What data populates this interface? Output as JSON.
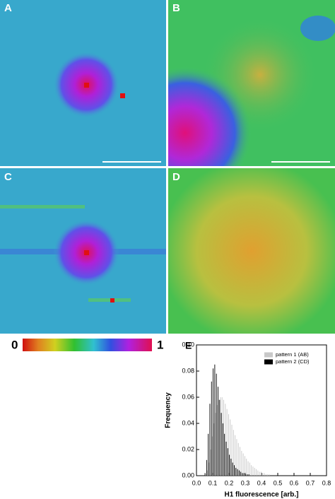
{
  "panels": {
    "labels": [
      "A",
      "B",
      "C",
      "D"
    ]
  },
  "colorbar": {
    "lim": [
      0,
      1
    ]
  },
  "chart_data": {
    "type": "histogram",
    "panel_label": "E",
    "xlabel": "H1 fluorescence [arb.]",
    "ylabel": "Frequency",
    "bins": [
      0.05,
      0.06,
      0.07,
      0.08,
      0.09,
      0.1,
      0.11,
      0.12,
      0.13,
      0.14,
      0.15,
      0.16,
      0.17,
      0.18,
      0.19,
      0.2,
      0.21,
      0.22,
      0.23,
      0.24,
      0.25,
      0.26,
      0.27,
      0.28,
      0.29,
      0.3,
      0.31,
      0.32,
      0.33,
      0.34,
      0.35,
      0.36,
      0.37,
      0.38,
      0.39,
      0.4,
      0.41,
      0.42,
      0.43,
      0.44,
      0.45
    ],
    "series": [
      {
        "name": "pattern 1 (AB)",
        "color": "#c8c8c8",
        "values": [
          0.001,
          0.004,
          0.01,
          0.02,
          0.03,
          0.04,
          0.048,
          0.054,
          0.058,
          0.06,
          0.06,
          0.058,
          0.055,
          0.051,
          0.047,
          0.043,
          0.039,
          0.035,
          0.031,
          0.028,
          0.025,
          0.022,
          0.019,
          0.017,
          0.015,
          0.013,
          0.011,
          0.01,
          0.008,
          0.007,
          0.006,
          0.005,
          0.004,
          0.003,
          0.003,
          0.002,
          0.002,
          0.001,
          0.001,
          0.001
        ]
      },
      {
        "name": "pattern 2 (CD)",
        "color": "#000000",
        "values": [
          0.002,
          0.012,
          0.032,
          0.055,
          0.072,
          0.082,
          0.085,
          0.078,
          0.068,
          0.058,
          0.048,
          0.04,
          0.032,
          0.026,
          0.021,
          0.016,
          0.013,
          0.01,
          0.008,
          0.006,
          0.005,
          0.004,
          0.003,
          0.002,
          0.002,
          0.001,
          0.001,
          0.001,
          0,
          0,
          0,
          0,
          0,
          0,
          0,
          0,
          0,
          0,
          0,
          0
        ]
      }
    ],
    "xlim": [
      0,
      0.8
    ],
    "xticks": [
      {
        "value": 0,
        "label": "0.0"
      },
      0.1,
      0.2,
      0.3,
      0.4,
      0.5,
      0.6,
      0.7,
      0.8
    ],
    "ylim": [
      0,
      0.1
    ],
    "yticks": [
      {
        "value": 0,
        "label": "0.00"
      },
      {
        "value": 0.02,
        "label": "0.02"
      },
      {
        "value": 0.04,
        "label": "0.04"
      },
      {
        "value": 0.06,
        "label": "0.06"
      },
      {
        "value": 0.08,
        "label": "0.08"
      },
      {
        "value": 0.1,
        "label": "0.10"
      }
    ],
    "legend": "upper right",
    "grid": false
  }
}
